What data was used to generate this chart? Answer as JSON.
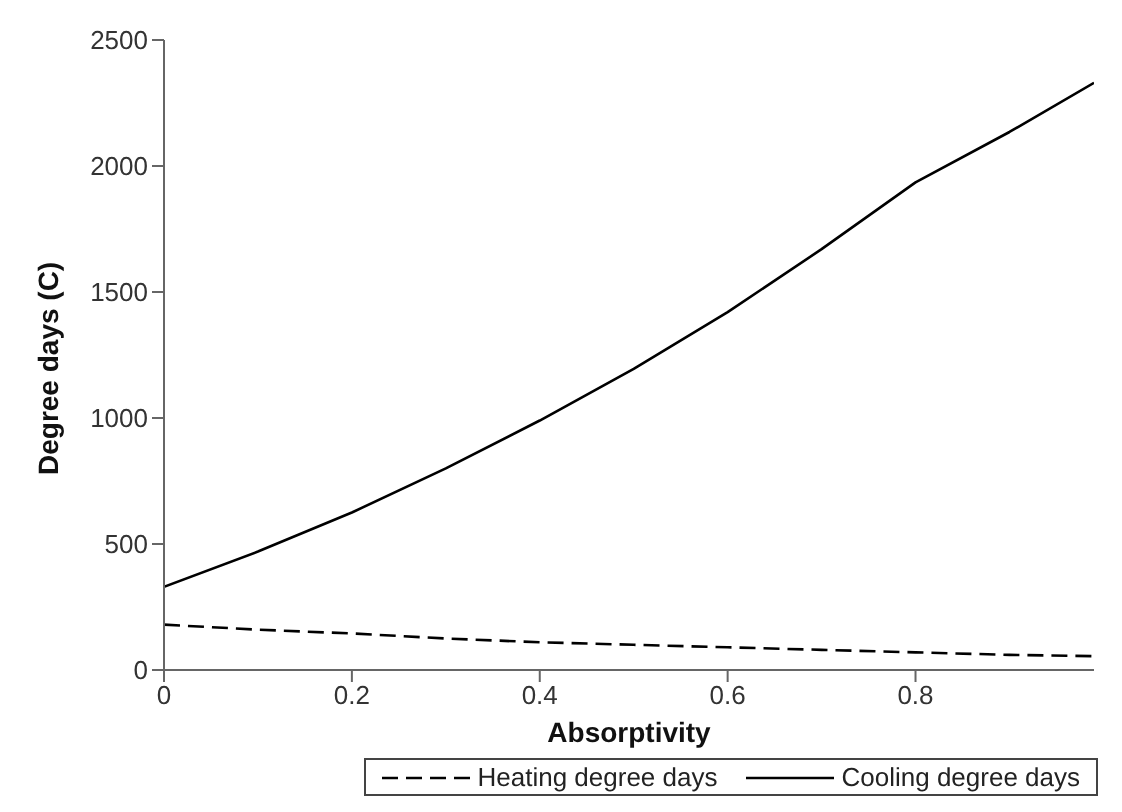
{
  "chart_data": {
    "type": "line",
    "xlabel": "Absorptivity",
    "ylabel": "Degree days (C)",
    "x": [
      0,
      0.1,
      0.2,
      0.3,
      0.4,
      0.5,
      0.6,
      0.7,
      0.8,
      0.9,
      0.99
    ],
    "series": [
      {
        "name": "Heating degree days",
        "color": "#000000",
        "line_style": "dashed",
        "values": [
          180,
          160,
          145,
          125,
          110,
          100,
          90,
          80,
          70,
          60,
          55
        ]
      },
      {
        "name": "Cooling degree days",
        "color": "#000000",
        "line_style": "solid",
        "values": [
          330,
          470,
          625,
          800,
          990,
          1195,
          1420,
          1670,
          1935,
          2135,
          2330
        ]
      }
    ],
    "xlim": [
      0,
      0.99
    ],
    "xticks": [
      0,
      0.2,
      0.4,
      0.6,
      0.8
    ],
    "ylim": [
      0,
      2500
    ],
    "yticks": [
      0,
      500,
      1000,
      1500,
      2000,
      2500
    ],
    "legend": "bottom",
    "marker": "none"
  }
}
